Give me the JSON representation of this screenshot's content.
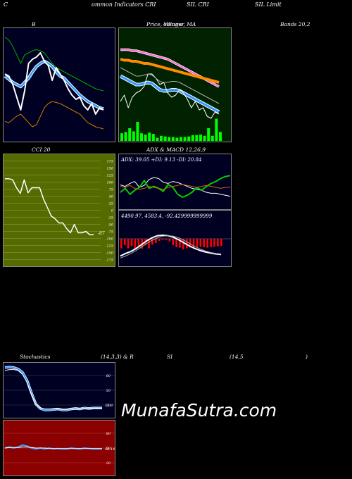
{
  "header": {
    "part1": "C",
    "part2": "ommon  Indicators CRI",
    "part3": "SIL  CRI",
    "part4": "SIL  Limit"
  },
  "titles": {
    "bollinger_left": "B",
    "bollinger_mid": "Price,  Volume, MA",
    "bollinger_overlap": "ollinger",
    "bollinger_right": "Bands 20,2",
    "cci": "CCI 20",
    "adx_macd": "ADX  & MACD 12,26,9",
    "stoch_left": "Stochastics",
    "stoch_mid": "(14,3,3) & R",
    "stoch_rsi": "SI",
    "stoch_period": "(14,5",
    "stoch_close": ")"
  },
  "adx_info": "ADX: 39.05  +DI: 9.13  -DI: 20.84",
  "macd_info": "4490.97,  4583.4,  -92.429999999999",
  "cci_value": "-87",
  "stoch_value": "13.8",
  "rsi_value": "48.14",
  "watermark": "MunafaSutra.com",
  "cci_ticks": [
    "175",
    "150",
    "125",
    "100",
    "75",
    "50",
    "25",
    "0",
    "-25",
    "-50",
    "-75",
    "-100",
    "-125",
    "-150",
    "-175"
  ],
  "stoch_ticks": [
    "80",
    "50",
    "20"
  ],
  "rsi_ticks": [
    "80",
    "50",
    "20"
  ],
  "colors": {
    "panel_bg": "#000022",
    "price_bg": "#002200",
    "cci_bg": "#556b00",
    "rsi_bg": "#8b0000",
    "volume": "#00ff00",
    "price_line": "#ffffff",
    "bb_upper": "#00aa00",
    "bb_mid": "#3399ff",
    "bb_lower": "#cc7700",
    "ma_orange": "#ff8c00",
    "ma_pink": "#ff66cc",
    "macd_bar": "#ff0000",
    "adx_green": "#00cc00"
  },
  "chart_data": [
    {
      "type": "line",
      "panel": "bollinger-bands",
      "series": [
        {
          "values": [
            0.05,
            0.08,
            0.14,
            0.22,
            0.3,
            0.22,
            0.2,
            0.18,
            0.17,
            0.18,
            0.2,
            0.25,
            0.3,
            0.34,
            0.36,
            0.38,
            0.4,
            0.42,
            0.44,
            0.46,
            0.48,
            0.5,
            0.52,
            0.54,
            0.55,
            0.56
          ]
        },
        {
          "values": [
            0.42,
            0.45,
            0.48,
            0.5,
            0.52,
            0.48,
            0.44,
            0.38,
            0.33,
            0.3,
            0.28,
            0.3,
            0.33,
            0.38,
            0.42,
            0.44,
            0.48,
            0.52,
            0.56,
            0.6,
            0.63,
            0.66,
            0.68,
            0.7,
            0.72,
            0.73
          ]
        },
        {
          "values": [
            0.85,
            0.86,
            0.83,
            0.8,
            0.78,
            0.82,
            0.86,
            0.9,
            0.88,
            0.8,
            0.72,
            0.68,
            0.66,
            0.67,
            0.68,
            0.7,
            0.72,
            0.74,
            0.76,
            0.78,
            0.82,
            0.86,
            0.88,
            0.9,
            0.91,
            0.92
          ]
        },
        {
          "values": [
            0.4,
            0.42,
            0.5,
            0.62,
            0.74,
            0.56,
            0.3,
            0.26,
            0.24,
            0.2,
            0.28,
            0.32,
            0.46,
            0.34,
            0.4,
            0.46,
            0.54,
            0.6,
            0.64,
            0.62,
            0.7,
            0.74,
            0.68,
            0.78,
            0.72,
            0.74
          ]
        }
      ]
    },
    {
      "type": "line",
      "panel": "price-volume-ma",
      "series": [
        {
          "values": [
            0.17,
            0.17,
            0.17,
            0.18,
            0.18,
            0.19,
            0.2,
            0.21,
            0.22,
            0.23,
            0.24,
            0.25,
            0.26,
            0.28,
            0.3,
            0.32,
            0.34,
            0.36,
            0.38,
            0.4,
            0.42,
            0.44,
            0.46,
            0.48,
            0.5,
            0.52
          ]
        },
        {
          "values": [
            0.26,
            0.27,
            0.27,
            0.28,
            0.28,
            0.29,
            0.3,
            0.3,
            0.31,
            0.32,
            0.33,
            0.34,
            0.35,
            0.36,
            0.37,
            0.38,
            0.39,
            0.4,
            0.41,
            0.42,
            0.43,
            0.44,
            0.45,
            0.46,
            0.47,
            0.48
          ]
        },
        {
          "values": [
            0.42,
            0.44,
            0.46,
            0.48,
            0.5,
            0.5,
            0.49,
            0.48,
            0.49,
            0.52,
            0.55,
            0.56,
            0.56,
            0.55,
            0.55,
            0.56,
            0.58,
            0.6,
            0.62,
            0.64,
            0.66,
            0.68,
            0.7,
            0.72,
            0.74,
            0.76
          ]
        },
        {
          "values": [
            0.66,
            0.6,
            0.72,
            0.62,
            0.58,
            0.56,
            0.52,
            0.4,
            0.4,
            0.44,
            0.5,
            0.48,
            0.58,
            0.62,
            0.6,
            0.55,
            0.58,
            0.64,
            0.72,
            0.66,
            0.74,
            0.72,
            0.8,
            0.82,
            0.76,
            0.78
          ]
        },
        {
          "values": [
            0.12,
            0.14,
            0.2,
            0.15,
            0.3,
            0.12,
            0.1,
            0.13,
            0.11,
            0.05,
            0.08,
            0.07,
            0.06,
            0.06,
            0.05,
            0.06,
            0.06,
            0.07,
            0.09,
            0.09,
            0.1,
            0.08,
            0.2,
            0.08,
            0.35,
            0.14
          ]
        }
      ]
    },
    {
      "type": "line",
      "panel": "cci",
      "x": [
        1,
        2,
        3,
        4,
        5,
        6,
        7,
        8,
        9,
        10,
        11,
        12,
        13,
        14,
        15,
        16,
        17,
        18,
        19,
        20,
        21,
        22,
        23,
        24
      ],
      "series": [
        {
          "values": [
            112,
            112,
            108,
            80,
            60,
            108,
            62,
            80,
            80,
            80,
            40,
            10,
            -20,
            -30,
            -45,
            -45,
            -65,
            -80,
            -50,
            -80,
            -80,
            -75,
            -87,
            -87
          ]
        }
      ],
      "ylim": [
        -175,
        175
      ]
    },
    {
      "type": "line",
      "panel": "adx",
      "series": [
        {
          "values": [
            0.55,
            0.58,
            0.52,
            0.48,
            0.6,
            0.56,
            0.44,
            0.4,
            0.42,
            0.5,
            0.52,
            0.48,
            0.5,
            0.54,
            0.58,
            0.62,
            0.64,
            0.66,
            0.7,
            0.72,
            0.72,
            0.74,
            0.76,
            0.78
          ]
        },
        {
          "values": [
            0.7,
            0.62,
            0.74,
            0.66,
            0.6,
            0.46,
            0.62,
            0.58,
            0.62,
            0.68,
            0.54,
            0.6,
            0.74,
            0.8,
            0.76,
            0.7,
            0.6,
            0.66,
            0.58,
            0.52,
            0.48,
            0.42,
            0.38,
            0.36
          ]
        },
        {
          "values": [
            0.58,
            0.6,
            0.56,
            0.62,
            0.64,
            0.62,
            0.58,
            0.6,
            0.62,
            0.64,
            0.6,
            0.58,
            0.56,
            0.54,
            0.56,
            0.58,
            0.6,
            0.58,
            0.56,
            0.58,
            0.6,
            0.62,
            0.6,
            0.6
          ]
        }
      ]
    },
    {
      "type": "bar",
      "panel": "macd",
      "series": [
        {
          "values": [
            0.45,
            0.3,
            0.45,
            0.34,
            0.46,
            0.33,
            0.47,
            0.31,
            0.45,
            0.28,
            0.2,
            0.1,
            0.05,
            0.05,
            0.12,
            0.3,
            0.4,
            0.42,
            0.5,
            0.45,
            0.42,
            0.45,
            0.4,
            0.38,
            0.4,
            0.42,
            0.4,
            0.38,
            0.36,
            0.34
          ]
        },
        {
          "values": [
            0.1,
            0.2,
            0.28,
            0.4,
            0.55,
            0.7,
            0.82,
            0.9,
            0.92,
            0.9,
            0.84,
            0.74,
            0.62,
            0.5,
            0.4,
            0.32,
            0.26,
            0.22,
            0.18,
            0.16
          ]
        },
        {
          "values": [
            0.02,
            0.1,
            0.2,
            0.32,
            0.46,
            0.6,
            0.72,
            0.82,
            0.88,
            0.9,
            0.88,
            0.82,
            0.72,
            0.6,
            0.48,
            0.38,
            0.3,
            0.24,
            0.2,
            0.18
          ]
        }
      ]
    },
    {
      "type": "line",
      "panel": "stochastics",
      "series": [
        {
          "values": [
            96,
            97,
            96,
            93,
            86,
            70,
            45,
            22,
            13,
            10,
            10,
            11,
            12,
            10,
            10,
            12,
            13,
            12,
            14,
            13,
            14,
            14,
            13.8
          ]
        },
        {
          "values": [
            90,
            92,
            92,
            90,
            82,
            66,
            42,
            22,
            14,
            12,
            12,
            12,
            12,
            11,
            11,
            12,
            12,
            13,
            13,
            13,
            14,
            14,
            14
          ]
        }
      ],
      "ylim": [
        0,
        100
      ]
    },
    {
      "type": "line",
      "panel": "rsi",
      "series": [
        {
          "values": [
            50,
            52,
            50,
            52,
            56,
            54,
            50,
            48,
            50,
            48,
            50,
            48,
            49,
            48,
            48,
            50,
            49,
            48,
            50,
            49,
            48,
            48,
            48.14
          ]
        },
        {
          "values": [
            50,
            51,
            51,
            51,
            52,
            52,
            51,
            50,
            50,
            50,
            49,
            49,
            49,
            49,
            49,
            49,
            49,
            49,
            49,
            49,
            49,
            49,
            49
          ]
        }
      ],
      "ylim": [
        0,
        100
      ]
    }
  ]
}
